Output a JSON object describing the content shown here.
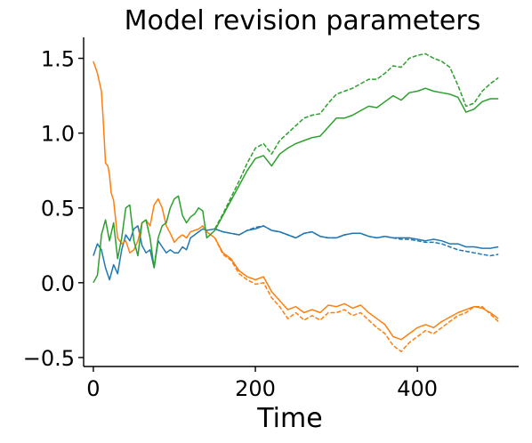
{
  "chart_data": {
    "type": "line",
    "title": "Model revision parameters",
    "xlabel": "Time",
    "ylabel": "",
    "xlim": [
      -12,
      525
    ],
    "ylim": [
      -0.56,
      1.64
    ],
    "xticks": [
      0,
      200,
      400
    ],
    "xtick_labels": [
      "0",
      "200",
      "400"
    ],
    "yticks": [
      -0.5,
      0.0,
      0.5,
      1.0,
      1.5
    ],
    "ytick_labels": [
      "−0.5",
      "0.0",
      "0.5",
      "1.0",
      "1.5"
    ],
    "grid": false,
    "legend": "none",
    "series": [
      {
        "color": "#1f77b4",
        "style": "solid",
        "points": [
          [
            0,
            0.18
          ],
          [
            5,
            0.26
          ],
          [
            10,
            0.22
          ],
          [
            15,
            0.1
          ],
          [
            20,
            0.02
          ],
          [
            25,
            0.12
          ],
          [
            30,
            0.06
          ],
          [
            35,
            0.22
          ],
          [
            40,
            0.32
          ],
          [
            45,
            0.28
          ],
          [
            50,
            0.36
          ],
          [
            55,
            0.38
          ],
          [
            60,
            0.25
          ],
          [
            65,
            0.2
          ],
          [
            70,
            0.22
          ],
          [
            75,
            0.1
          ],
          [
            80,
            0.28
          ],
          [
            85,
            0.24
          ],
          [
            90,
            0.2
          ],
          [
            95,
            0.22
          ],
          [
            100,
            0.2
          ],
          [
            105,
            0.2
          ],
          [
            110,
            0.24
          ],
          [
            115,
            0.22
          ],
          [
            120,
            0.3
          ],
          [
            125,
            0.32
          ],
          [
            130,
            0.34
          ],
          [
            135,
            0.36
          ],
          [
            140,
            0.35
          ],
          [
            150,
            0.36
          ],
          [
            160,
            0.34
          ],
          [
            170,
            0.33
          ],
          [
            180,
            0.32
          ],
          [
            190,
            0.35
          ],
          [
            200,
            0.36
          ],
          [
            210,
            0.38
          ],
          [
            220,
            0.35
          ],
          [
            230,
            0.34
          ],
          [
            240,
            0.32
          ],
          [
            250,
            0.3
          ],
          [
            260,
            0.33
          ],
          [
            270,
            0.34
          ],
          [
            280,
            0.31
          ],
          [
            290,
            0.3
          ],
          [
            300,
            0.3
          ],
          [
            310,
            0.32
          ],
          [
            320,
            0.33
          ],
          [
            330,
            0.33
          ],
          [
            340,
            0.31
          ],
          [
            350,
            0.3
          ],
          [
            360,
            0.31
          ],
          [
            370,
            0.3
          ],
          [
            380,
            0.3
          ],
          [
            390,
            0.3
          ],
          [
            400,
            0.29
          ],
          [
            410,
            0.28
          ],
          [
            420,
            0.29
          ],
          [
            430,
            0.28
          ],
          [
            440,
            0.26
          ],
          [
            450,
            0.26
          ],
          [
            460,
            0.24
          ],
          [
            470,
            0.24
          ],
          [
            480,
            0.23
          ],
          [
            490,
            0.23
          ],
          [
            500,
            0.24
          ]
        ]
      },
      {
        "color": "#1f77b4",
        "style": "dashed",
        "points": [
          [
            150,
            0.36
          ],
          [
            160,
            0.34
          ],
          [
            170,
            0.33
          ],
          [
            180,
            0.32
          ],
          [
            190,
            0.35
          ],
          [
            200,
            0.37
          ],
          [
            210,
            0.38
          ],
          [
            220,
            0.35
          ],
          [
            230,
            0.34
          ],
          [
            240,
            0.32
          ],
          [
            250,
            0.3
          ],
          [
            260,
            0.33
          ],
          [
            270,
            0.34
          ],
          [
            280,
            0.31
          ],
          [
            290,
            0.3
          ],
          [
            300,
            0.3
          ],
          [
            310,
            0.32
          ],
          [
            320,
            0.33
          ],
          [
            330,
            0.33
          ],
          [
            340,
            0.31
          ],
          [
            350,
            0.3
          ],
          [
            360,
            0.31
          ],
          [
            370,
            0.3
          ],
          [
            380,
            0.29
          ],
          [
            390,
            0.29
          ],
          [
            400,
            0.28
          ],
          [
            410,
            0.27
          ],
          [
            420,
            0.27
          ],
          [
            430,
            0.26
          ],
          [
            440,
            0.24
          ],
          [
            450,
            0.22
          ],
          [
            460,
            0.21
          ],
          [
            470,
            0.2
          ],
          [
            480,
            0.19
          ],
          [
            490,
            0.18
          ],
          [
            500,
            0.19
          ]
        ]
      },
      {
        "color": "#ff7f0e",
        "style": "solid",
        "points": [
          [
            0,
            1.48
          ],
          [
            5,
            1.4
          ],
          [
            10,
            1.28
          ],
          [
            12,
            1.1
          ],
          [
            15,
            0.8
          ],
          [
            18,
            0.78
          ],
          [
            20,
            0.72
          ],
          [
            22,
            0.6
          ],
          [
            25,
            0.55
          ],
          [
            28,
            0.4
          ],
          [
            30,
            0.3
          ],
          [
            35,
            0.26
          ],
          [
            40,
            0.28
          ],
          [
            45,
            0.2
          ],
          [
            50,
            0.22
          ],
          [
            55,
            0.28
          ],
          [
            60,
            0.4
          ],
          [
            65,
            0.42
          ],
          [
            70,
            0.38
          ],
          [
            75,
            0.52
          ],
          [
            80,
            0.56
          ],
          [
            85,
            0.5
          ],
          [
            90,
            0.38
          ],
          [
            95,
            0.33
          ],
          [
            100,
            0.27
          ],
          [
            105,
            0.3
          ],
          [
            110,
            0.32
          ],
          [
            115,
            0.3
          ],
          [
            120,
            0.34
          ],
          [
            125,
            0.35
          ],
          [
            130,
            0.36
          ],
          [
            135,
            0.38
          ],
          [
            140,
            0.34
          ],
          [
            150,
            0.3
          ],
          [
            160,
            0.2
          ],
          [
            170,
            0.16
          ],
          [
            180,
            0.08
          ],
          [
            190,
            0.04
          ],
          [
            200,
            0.02
          ],
          [
            210,
            0.04
          ],
          [
            220,
            -0.06
          ],
          [
            230,
            -0.12
          ],
          [
            240,
            -0.18
          ],
          [
            250,
            -0.16
          ],
          [
            260,
            -0.2
          ],
          [
            270,
            -0.18
          ],
          [
            280,
            -0.2
          ],
          [
            290,
            -0.15
          ],
          [
            300,
            -0.16
          ],
          [
            310,
            -0.14
          ],
          [
            320,
            -0.17
          ],
          [
            330,
            -0.15
          ],
          [
            340,
            -0.2
          ],
          [
            350,
            -0.24
          ],
          [
            360,
            -0.28
          ],
          [
            370,
            -0.36
          ],
          [
            380,
            -0.38
          ],
          [
            390,
            -0.34
          ],
          [
            400,
            -0.3
          ],
          [
            410,
            -0.28
          ],
          [
            420,
            -0.3
          ],
          [
            430,
            -0.26
          ],
          [
            440,
            -0.23
          ],
          [
            450,
            -0.2
          ],
          [
            460,
            -0.18
          ],
          [
            470,
            -0.16
          ],
          [
            480,
            -0.17
          ],
          [
            490,
            -0.2
          ],
          [
            500,
            -0.24
          ]
        ]
      },
      {
        "color": "#ff7f0e",
        "style": "dashed",
        "points": [
          [
            150,
            0.3
          ],
          [
            160,
            0.19
          ],
          [
            170,
            0.15
          ],
          [
            180,
            0.06
          ],
          [
            190,
            0.02
          ],
          [
            200,
            -0.01
          ],
          [
            210,
            0.0
          ],
          [
            220,
            -0.1
          ],
          [
            230,
            -0.16
          ],
          [
            240,
            -0.24
          ],
          [
            250,
            -0.2
          ],
          [
            260,
            -0.25
          ],
          [
            270,
            -0.22
          ],
          [
            280,
            -0.25
          ],
          [
            290,
            -0.2
          ],
          [
            300,
            -0.2
          ],
          [
            310,
            -0.18
          ],
          [
            320,
            -0.22
          ],
          [
            330,
            -0.2
          ],
          [
            340,
            -0.25
          ],
          [
            350,
            -0.3
          ],
          [
            360,
            -0.34
          ],
          [
            370,
            -0.42
          ],
          [
            380,
            -0.46
          ],
          [
            390,
            -0.4
          ],
          [
            400,
            -0.36
          ],
          [
            410,
            -0.32
          ],
          [
            420,
            -0.34
          ],
          [
            430,
            -0.3
          ],
          [
            440,
            -0.26
          ],
          [
            450,
            -0.22
          ],
          [
            460,
            -0.2
          ],
          [
            470,
            -0.16
          ],
          [
            480,
            -0.16
          ],
          [
            490,
            -0.21
          ],
          [
            500,
            -0.26
          ]
        ]
      },
      {
        "color": "#2ca02c",
        "style": "solid",
        "points": [
          [
            0,
            0.0
          ],
          [
            5,
            0.05
          ],
          [
            8,
            0.2
          ],
          [
            10,
            0.32
          ],
          [
            15,
            0.42
          ],
          [
            20,
            0.28
          ],
          [
            25,
            0.4
          ],
          [
            30,
            0.16
          ],
          [
            35,
            0.3
          ],
          [
            40,
            0.5
          ],
          [
            45,
            0.52
          ],
          [
            50,
            0.28
          ],
          [
            55,
            0.18
          ],
          [
            60,
            0.4
          ],
          [
            65,
            0.42
          ],
          [
            70,
            0.3
          ],
          [
            75,
            0.1
          ],
          [
            80,
            0.3
          ],
          [
            85,
            0.38
          ],
          [
            90,
            0.4
          ],
          [
            95,
            0.5
          ],
          [
            100,
            0.56
          ],
          [
            105,
            0.58
          ],
          [
            110,
            0.45
          ],
          [
            115,
            0.4
          ],
          [
            120,
            0.44
          ],
          [
            125,
            0.46
          ],
          [
            130,
            0.5
          ],
          [
            135,
            0.48
          ],
          [
            140,
            0.3
          ],
          [
            150,
            0.35
          ],
          [
            160,
            0.45
          ],
          [
            170,
            0.55
          ],
          [
            180,
            0.65
          ],
          [
            190,
            0.75
          ],
          [
            200,
            0.83
          ],
          [
            210,
            0.85
          ],
          [
            220,
            0.78
          ],
          [
            230,
            0.86
          ],
          [
            240,
            0.9
          ],
          [
            250,
            0.93
          ],
          [
            260,
            0.95
          ],
          [
            270,
            0.97
          ],
          [
            280,
            0.98
          ],
          [
            290,
            1.04
          ],
          [
            300,
            1.1
          ],
          [
            310,
            1.1
          ],
          [
            320,
            1.12
          ],
          [
            330,
            1.15
          ],
          [
            340,
            1.18
          ],
          [
            350,
            1.17
          ],
          [
            360,
            1.21
          ],
          [
            370,
            1.25
          ],
          [
            380,
            1.22
          ],
          [
            390,
            1.27
          ],
          [
            400,
            1.28
          ],
          [
            410,
            1.3
          ],
          [
            420,
            1.28
          ],
          [
            430,
            1.27
          ],
          [
            440,
            1.26
          ],
          [
            450,
            1.24
          ],
          [
            460,
            1.14
          ],
          [
            470,
            1.16
          ],
          [
            480,
            1.21
          ],
          [
            490,
            1.23
          ],
          [
            500,
            1.23
          ]
        ]
      },
      {
        "color": "#2ca02c",
        "style": "dashed",
        "points": [
          [
            150,
            0.36
          ],
          [
            160,
            0.46
          ],
          [
            170,
            0.57
          ],
          [
            180,
            0.68
          ],
          [
            190,
            0.8
          ],
          [
            200,
            0.9
          ],
          [
            210,
            0.93
          ],
          [
            220,
            0.86
          ],
          [
            230,
            0.95
          ],
          [
            240,
            1.0
          ],
          [
            250,
            1.05
          ],
          [
            260,
            1.1
          ],
          [
            270,
            1.12
          ],
          [
            280,
            1.13
          ],
          [
            290,
            1.2
          ],
          [
            300,
            1.26
          ],
          [
            310,
            1.28
          ],
          [
            320,
            1.3
          ],
          [
            330,
            1.33
          ],
          [
            340,
            1.36
          ],
          [
            350,
            1.36
          ],
          [
            360,
            1.4
          ],
          [
            370,
            1.45
          ],
          [
            380,
            1.44
          ],
          [
            390,
            1.5
          ],
          [
            400,
            1.52
          ],
          [
            410,
            1.53
          ],
          [
            420,
            1.5
          ],
          [
            430,
            1.48
          ],
          [
            440,
            1.44
          ],
          [
            450,
            1.32
          ],
          [
            460,
            1.18
          ],
          [
            470,
            1.2
          ],
          [
            480,
            1.28
          ],
          [
            490,
            1.33
          ],
          [
            500,
            1.37
          ]
        ]
      }
    ]
  }
}
